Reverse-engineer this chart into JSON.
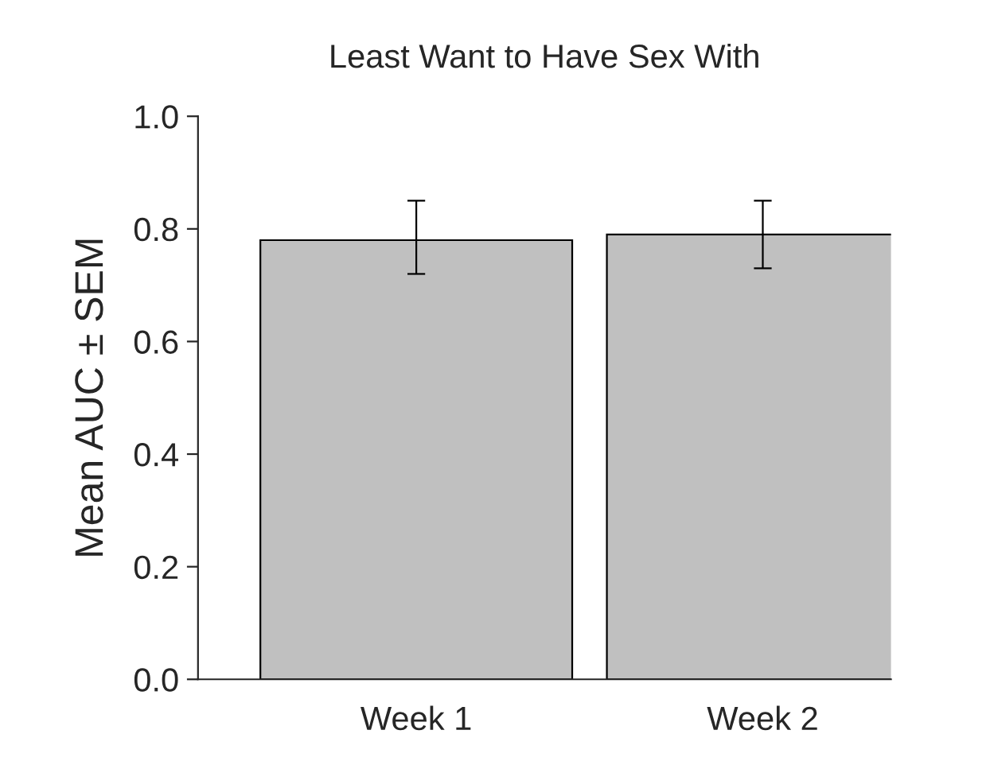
{
  "chart_data": {
    "type": "bar",
    "title": "Least Want to Have Sex With",
    "ylabel": "Mean AUC ± SEM",
    "categories": [
      "Week 1",
      "Week 2"
    ],
    "values": [
      0.78,
      0.79
    ],
    "errors": [
      [
        0.72,
        0.85
      ],
      [
        0.73,
        0.85
      ]
    ],
    "color": "#c0c0c0",
    "ylim": [
      0,
      1.0
    ],
    "yticks": [
      {
        "value": 0,
        "label": "0.0"
      },
      {
        "value": 0.2,
        "label": "0.2"
      },
      {
        "value": 0.4,
        "label": "0.4"
      },
      {
        "value": 0.6,
        "label": "0.6"
      },
      {
        "value": 0.8,
        "label": "0.8"
      },
      {
        "value": 1.0,
        "label": "1.0"
      }
    ],
    "grid": false,
    "legend": false
  }
}
